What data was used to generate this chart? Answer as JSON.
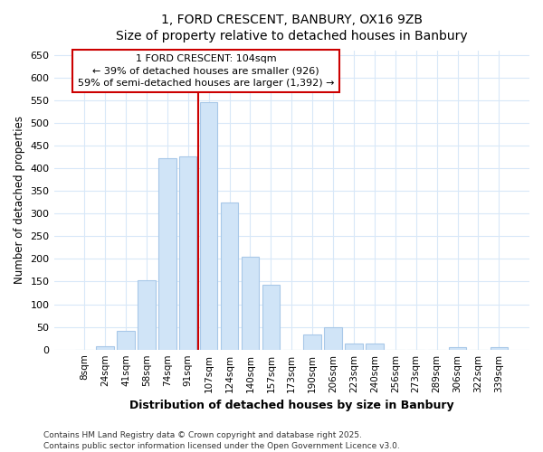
{
  "title_line1": "1, FORD CRESCENT, BANBURY, OX16 9ZB",
  "title_line2": "Size of property relative to detached houses in Banbury",
  "xlabel": "Distribution of detached houses by size in Banbury",
  "ylabel": "Number of detached properties",
  "categories": [
    "8sqm",
    "24sqm",
    "41sqm",
    "58sqm",
    "74sqm",
    "91sqm",
    "107sqm",
    "124sqm",
    "140sqm",
    "157sqm",
    "173sqm",
    "190sqm",
    "206sqm",
    "223sqm",
    "240sqm",
    "256sqm",
    "273sqm",
    "289sqm",
    "306sqm",
    "322sqm",
    "339sqm"
  ],
  "values": [
    0,
    8,
    42,
    153,
    422,
    425,
    545,
    325,
    205,
    143,
    0,
    33,
    50,
    13,
    13,
    0,
    0,
    0,
    5,
    0,
    5
  ],
  "bar_color": "#d0e4f7",
  "bar_edge_color": "#a8c8e8",
  "property_line_index": 6,
  "property_label": "1 FORD CRESCENT: 104sqm",
  "property_smaller_pct": "← 39% of detached houses are smaller (926)",
  "property_larger_pct": "59% of semi-detached houses are larger (1,392) →",
  "annotation_box_color": "#cc0000",
  "ylim": [
    0,
    660
  ],
  "yticks": [
    0,
    50,
    100,
    150,
    200,
    250,
    300,
    350,
    400,
    450,
    500,
    550,
    600,
    650
  ],
  "footnote_line1": "Contains HM Land Registry data © Crown copyright and database right 2025.",
  "footnote_line2": "Contains public sector information licensed under the Open Government Licence v3.0.",
  "bg_color": "#ffffff",
  "grid_color": "#d8e8f8"
}
